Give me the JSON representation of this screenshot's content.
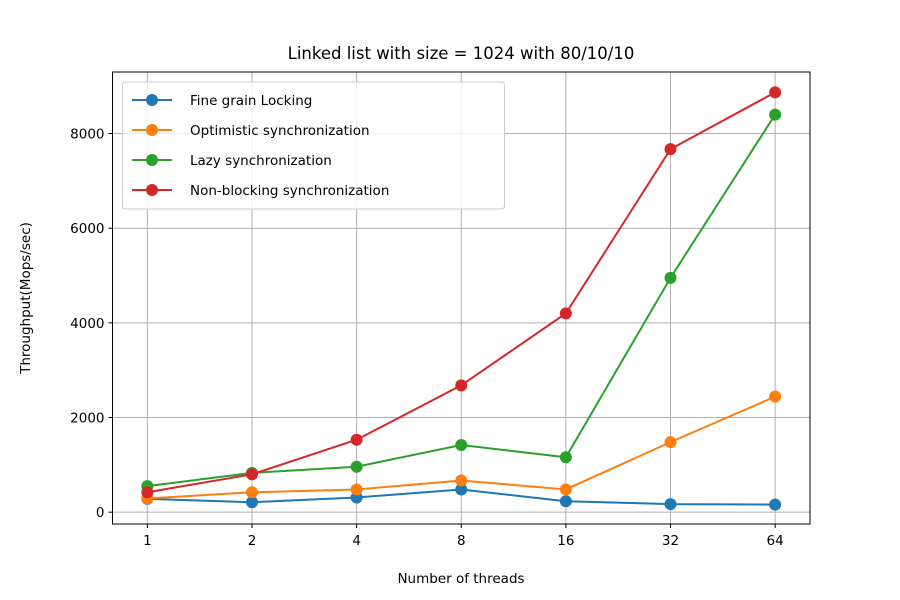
{
  "chart_data": {
    "type": "line",
    "title": "Linked list with size = 1024 with 80/10/10",
    "xlabel": "Number of threads",
    "ylabel": "Throughput(Mops/sec)",
    "x_scale": "log2",
    "categories": [
      "1",
      "2",
      "4",
      "8",
      "16",
      "32",
      "64"
    ],
    "x": [
      1,
      2,
      4,
      8,
      16,
      32,
      64
    ],
    "ylim": [
      -250,
      9300
    ],
    "yticks": [
      0,
      2000,
      4000,
      6000,
      8000
    ],
    "grid": true,
    "legend_position": "top-left",
    "series": [
      {
        "name": "Fine grain Locking",
        "color": "#1f77b4",
        "values": [
          280,
          210,
          310,
          480,
          230,
          170,
          160
        ]
      },
      {
        "name": "Optimistic synchronization",
        "color": "#ff7f0e",
        "values": [
          290,
          420,
          480,
          670,
          480,
          1480,
          2440
        ]
      },
      {
        "name": "Lazy synchronization",
        "color": "#2ca02c",
        "values": [
          550,
          830,
          960,
          1420,
          1160,
          4950,
          8400
        ]
      },
      {
        "name": "Non-blocking synchronization",
        "color": "#d62728",
        "values": [
          420,
          800,
          1530,
          2680,
          4200,
          7670,
          8870
        ]
      }
    ]
  }
}
